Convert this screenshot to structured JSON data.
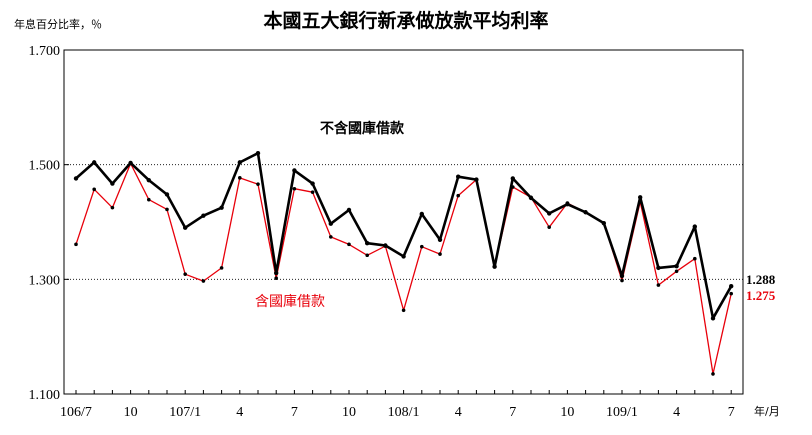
{
  "chart_data": {
    "type": "line",
    "title": "本國五大銀行新承做放款平均利率",
    "ylabel": "年息百分比率，％",
    "xlabel": "年/月",
    "ylim": [
      1.1,
      1.7
    ],
    "yticks": [
      "1.100",
      "1.300",
      "1.500",
      "1.700"
    ],
    "ytick_values": [
      1.1,
      1.3,
      1.5,
      1.7
    ],
    "grid": "dotted horizontal at 1.300 and 1.500",
    "x": [
      "106/7",
      "106/8",
      "106/9",
      "106/10",
      "106/11",
      "106/12",
      "107/1",
      "107/2",
      "107/3",
      "107/4",
      "107/5",
      "107/6",
      "107/7",
      "107/8",
      "107/9",
      "107/10",
      "107/11",
      "107/12",
      "108/1",
      "108/2",
      "108/3",
      "108/4",
      "108/5",
      "108/6",
      "108/7",
      "108/8",
      "108/9",
      "108/10",
      "108/11",
      "108/12",
      "109/1",
      "109/2",
      "109/3",
      "109/4",
      "109/5",
      "109/6",
      "109/7"
    ],
    "xtick_labels": [
      {
        "index": 0,
        "label": "106/7"
      },
      {
        "index": 3,
        "label": "10"
      },
      {
        "index": 6,
        "label": "107/1"
      },
      {
        "index": 9,
        "label": "4"
      },
      {
        "index": 12,
        "label": "7"
      },
      {
        "index": 15,
        "label": "10"
      },
      {
        "index": 18,
        "label": "108/1"
      },
      {
        "index": 21,
        "label": "4"
      },
      {
        "index": 24,
        "label": "7"
      },
      {
        "index": 27,
        "label": "10"
      },
      {
        "index": 30,
        "label": "109/1"
      },
      {
        "index": 33,
        "label": "4"
      },
      {
        "index": 36,
        "label": "7"
      }
    ],
    "series": [
      {
        "name": "不含國庫借款",
        "color": "#000000",
        "values": [
          1.476,
          1.504,
          1.467,
          1.503,
          1.473,
          1.448,
          1.39,
          1.411,
          1.425,
          1.504,
          1.52,
          1.311,
          1.49,
          1.467,
          1.397,
          1.421,
          1.363,
          1.359,
          1.34,
          1.414,
          1.369,
          1.479,
          1.474,
          1.322,
          1.476,
          1.442,
          1.415,
          1.431,
          1.417,
          1.398,
          1.306,
          1.443,
          1.32,
          1.323,
          1.392,
          1.232,
          1.288
        ],
        "end_label": "1.288",
        "annotation": "不含國庫借款"
      },
      {
        "name": "含國庫借款",
        "color": "#e8000b",
        "values": [
          1.361,
          1.457,
          1.425,
          1.502,
          1.439,
          1.422,
          1.309,
          1.297,
          1.32,
          1.477,
          1.466,
          1.302,
          1.458,
          1.452,
          1.374,
          1.361,
          1.342,
          1.358,
          1.246,
          1.357,
          1.344,
          1.446,
          1.474,
          1.322,
          1.461,
          1.443,
          1.391,
          1.433,
          1.417,
          1.398,
          1.298,
          1.435,
          1.29,
          1.314,
          1.336,
          1.135,
          1.275
        ],
        "end_label": "1.275",
        "annotation": "含國庫借款"
      }
    ]
  }
}
